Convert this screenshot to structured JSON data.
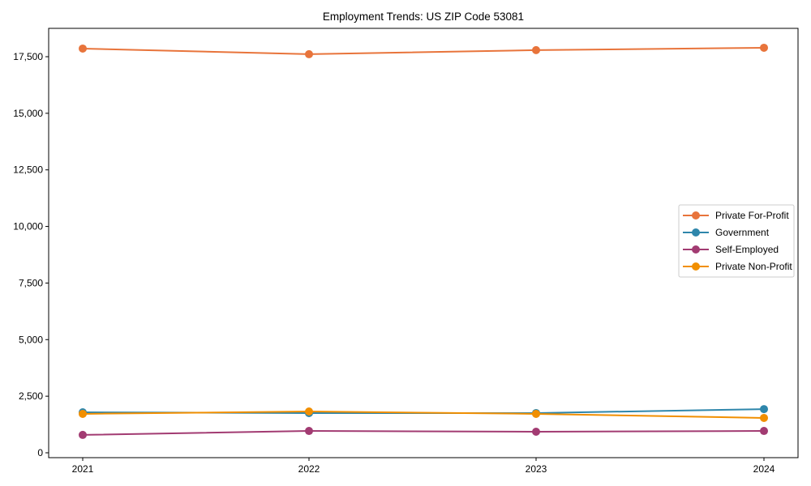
{
  "chart_data": {
    "type": "line",
    "title": "Employment Trends: US ZIP Code 53081",
    "xlabel": "",
    "ylabel": "",
    "x": [
      "2021",
      "2022",
      "2023",
      "2024"
    ],
    "ylim": [
      -250,
      18750
    ],
    "yticks": [
      0,
      2500,
      5000,
      7500,
      10000,
      12500,
      15000,
      17500
    ],
    "ytick_labels": [
      "0",
      "2,500",
      "5,000",
      "7,500",
      "10,000",
      "12,500",
      "15,000",
      "17,500"
    ],
    "grid": false,
    "legend_position": "center right",
    "series": [
      {
        "name": "Private For-Profit",
        "color": "#e8743b",
        "values": [
          17860,
          17610,
          17790,
          17895
        ]
      },
      {
        "name": "Government",
        "color": "#2e86ab",
        "values": [
          1790,
          1755,
          1755,
          1930
        ]
      },
      {
        "name": "Self-Employed",
        "color": "#a23b72",
        "values": [
          790,
          965,
          930,
          965
        ]
      },
      {
        "name": "Private Non-Profit",
        "color": "#f18f01",
        "values": [
          1720,
          1825,
          1720,
          1540
        ]
      }
    ]
  }
}
